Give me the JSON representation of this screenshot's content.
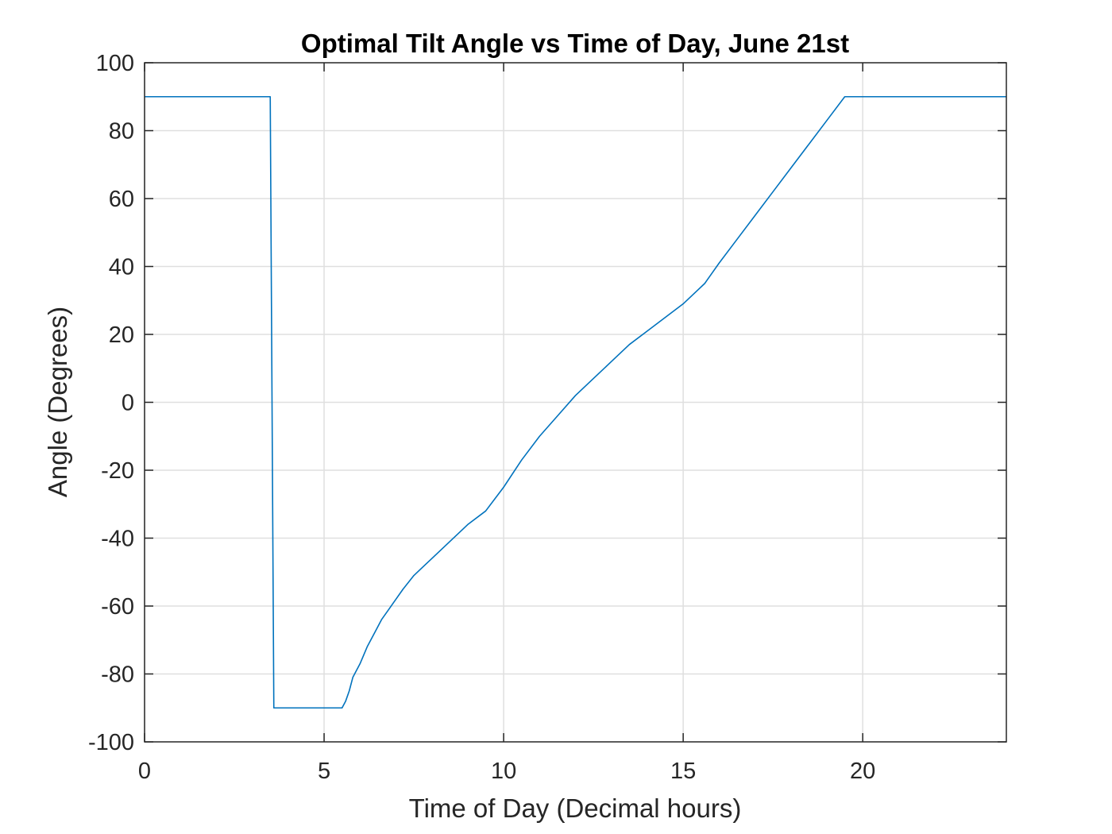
{
  "chart_data": {
    "type": "line",
    "title": "Optimal Tilt Angle vs Time of Day, June 21st",
    "xlabel": "Time of Day (Decimal hours)",
    "ylabel": "Angle (Degrees)",
    "xlim": [
      0,
      24
    ],
    "ylim": [
      -100,
      100
    ],
    "xticks": [
      0,
      5,
      10,
      15,
      20
    ],
    "xtick_labels": [
      "0",
      "5",
      "10",
      "15",
      "20"
    ],
    "yticks": [
      -100,
      -80,
      -60,
      -40,
      -20,
      0,
      20,
      40,
      60,
      80,
      100
    ],
    "ytick_labels": [
      "-100",
      "-80",
      "-60",
      "-40",
      "-20",
      "0",
      "20",
      "40",
      "60",
      "80",
      "100"
    ],
    "grid": true,
    "colors": {
      "line": "#0072BD",
      "axes": "#262626",
      "grid": "#DFDFDF"
    },
    "series": [
      {
        "x": [
          0,
          3.5,
          3.6,
          5.5,
          5.6,
          5.7,
          5.8,
          6.0,
          6.2,
          6.4,
          6.6,
          6.8,
          7.0,
          7.2,
          7.5,
          7.8,
          8.0,
          8.5,
          9.0,
          9.5,
          10.0,
          10.5,
          11.0,
          11.5,
          12.0,
          12.5,
          13.0,
          13.5,
          14.0,
          14.5,
          15.0,
          15.4,
          15.6,
          15.8,
          16.0,
          16.5,
          17.0,
          17.5,
          18.0,
          18.5,
          19.0,
          19.5,
          24
        ],
        "y": [
          90,
          90,
          -90,
          -90,
          -88,
          -85,
          -81,
          -77,
          -72,
          -68,
          -64,
          -61,
          -58,
          -55,
          -51,
          -48,
          -46,
          -41,
          -36,
          -32,
          -25,
          -17,
          -10,
          -4,
          2,
          7,
          12,
          17,
          21,
          25,
          29,
          33,
          35,
          38,
          41,
          48,
          55,
          62,
          69,
          76,
          83,
          90,
          90
        ]
      }
    ]
  }
}
